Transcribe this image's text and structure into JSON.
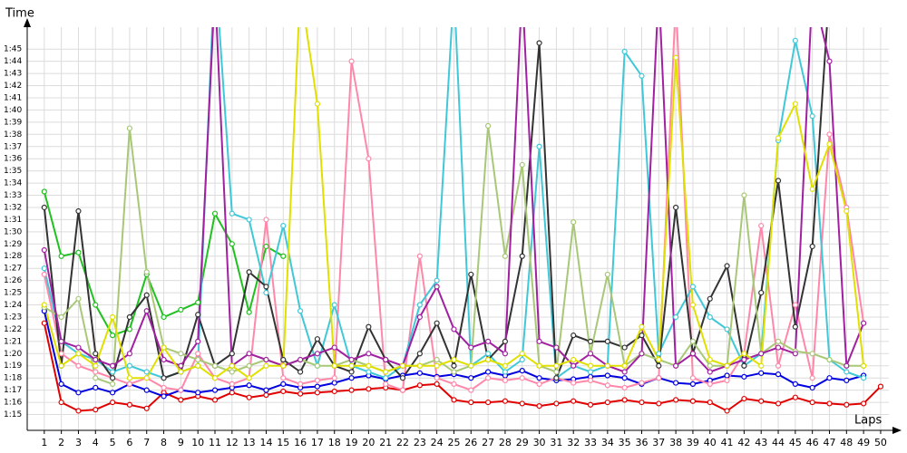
{
  "chart_data": {
    "type": "line",
    "ylabel": "Time",
    "xlabel": "Laps",
    "x": [
      1,
      2,
      3,
      4,
      5,
      6,
      7,
      8,
      9,
      10,
      11,
      12,
      13,
      14,
      15,
      16,
      17,
      18,
      19,
      20,
      21,
      22,
      23,
      24,
      25,
      26,
      27,
      28,
      29,
      30,
      31,
      32,
      33,
      34,
      35,
      36,
      37,
      38,
      39,
      40,
      41,
      42,
      43,
      44,
      45,
      46,
      47,
      48,
      49,
      50
    ],
    "xlim": [
      0,
      50.8
    ],
    "xticks": [
      1,
      2,
      3,
      4,
      5,
      6,
      7,
      8,
      9,
      10,
      11,
      12,
      13,
      14,
      15,
      16,
      17,
      18,
      19,
      20,
      21,
      22,
      23,
      24,
      25,
      26,
      27,
      28,
      29,
      30,
      31,
      32,
      33,
      34,
      35,
      36,
      37,
      38,
      39,
      40,
      41,
      42,
      43,
      44,
      45,
      46,
      47,
      48,
      49,
      50
    ],
    "ylim": [
      73.7,
      106.8
    ],
    "yticks": [
      {
        "value": 75,
        "label": "1:15"
      },
      {
        "value": 76,
        "label": "1:16"
      },
      {
        "value": 77,
        "label": "1:17"
      },
      {
        "value": 78,
        "label": "1:18"
      },
      {
        "value": 79,
        "label": "1:19"
      },
      {
        "value": 80,
        "label": "1:20"
      },
      {
        "value": 81,
        "label": "1:21"
      },
      {
        "value": 82,
        "label": "1:22"
      },
      {
        "value": 83,
        "label": "1:23"
      },
      {
        "value": 84,
        "label": "1:24"
      },
      {
        "value": 85,
        "label": "1:25"
      },
      {
        "value": 86,
        "label": "1:26"
      },
      {
        "value": 87,
        "label": "1:27"
      },
      {
        "value": 88,
        "label": "1:28"
      },
      {
        "value": 89,
        "label": "1:29"
      },
      {
        "value": 90,
        "label": "1:30"
      },
      {
        "value": 91,
        "label": "1:31"
      },
      {
        "value": 92,
        "label": "1:32"
      },
      {
        "value": 93,
        "label": "1:33"
      },
      {
        "value": 94,
        "label": "1:34"
      },
      {
        "value": 95,
        "label": "1:35"
      },
      {
        "value": 96,
        "label": "1:36"
      },
      {
        "value": 97,
        "label": "1:37"
      },
      {
        "value": 98,
        "label": "1:38"
      },
      {
        "value": 99,
        "label": "1:39"
      },
      {
        "value": 100,
        "label": "1:40"
      },
      {
        "value": 101,
        "label": "1:41"
      },
      {
        "value": 102,
        "label": "1:42"
      },
      {
        "value": 103,
        "label": "1:43"
      },
      {
        "value": 104,
        "label": "1:44"
      },
      {
        "value": 105,
        "label": "1:45"
      }
    ],
    "grid": true,
    "series": [
      {
        "color": "#e00000",
        "values": [
          82.5,
          76,
          75.3,
          75.4,
          76,
          75.8,
          75.5,
          76.8,
          76.2,
          76.5,
          76.2,
          76.8,
          76.4,
          76.6,
          76.9,
          76.7,
          76.8,
          76.9,
          77,
          77.1,
          77.2,
          77,
          77.4,
          77.5,
          76.2,
          76,
          76,
          76.1,
          75.9,
          75.7,
          75.9,
          76.1,
          75.8,
          76,
          76.2,
          76,
          75.9,
          76.2,
          76.1,
          76,
          75.3,
          76.3,
          76.1,
          75.9,
          76.4,
          76,
          75.9,
          75.8,
          75.9,
          77.3
        ]
      },
      {
        "color": "#0000e0",
        "values": [
          83.5,
          77.5,
          76.8,
          77.2,
          76.8,
          77.5,
          77,
          76.5,
          77,
          76.8,
          77,
          77.2,
          77.4,
          77,
          77.5,
          77.2,
          77.3,
          77.6,
          78,
          78.2,
          77.9,
          78.2,
          78.4,
          78.1,
          78.3,
          78,
          78.5,
          78.2,
          78.6,
          78,
          77.8,
          77.9,
          78.1,
          78.2,
          78,
          77.5,
          78,
          77.6,
          77.5,
          77.8,
          78.2,
          78.1,
          78.4,
          78.3,
          77.5,
          77.2,
          78,
          77.8,
          78.2,
          null
        ]
      },
      {
        "color": "#20c020",
        "values": [
          93.3,
          88,
          88.3,
          84,
          81.5,
          82,
          86.5,
          83,
          83.6,
          84.2,
          91.5,
          89,
          83.4,
          88.8,
          88,
          null,
          null,
          null,
          null,
          null,
          null,
          null,
          null,
          null,
          null,
          null,
          null,
          null,
          null,
          null,
          null,
          null,
          null,
          null,
          null,
          null,
          null,
          null,
          null,
          null,
          null,
          null,
          null,
          null,
          null,
          null,
          null,
          null,
          null,
          null
        ]
      },
      {
        "color": "#ff88aa",
        "values": [
          86.5,
          80,
          79,
          78.5,
          78,
          77.5,
          78,
          77.2,
          77,
          80,
          78,
          77.5,
          78,
          91,
          78,
          77.5,
          77.8,
          78,
          104,
          96,
          77.5,
          77,
          88,
          78,
          77.5,
          77,
          78,
          77.8,
          78,
          77.5,
          78,
          77.6,
          77.8,
          77.4,
          77.2,
          77.6,
          78,
          109,
          78,
          77.5,
          77.8,
          80,
          90.5,
          79,
          84,
          78,
          98,
          92,
          82.5,
          null
        ]
      },
      {
        "color": "#40c8d8",
        "values": [
          87,
          81,
          80,
          79.5,
          78.5,
          79,
          78.5,
          78,
          78.5,
          79,
          112,
          91.5,
          91,
          85,
          90.5,
          83.5,
          79,
          84,
          79,
          78.5,
          78,
          79,
          84,
          86,
          110,
          79,
          80,
          78.5,
          79.5,
          97,
          78,
          79,
          78.5,
          79,
          104.8,
          102.8,
          80,
          83,
          85.5,
          83,
          82,
          79,
          80,
          97.5,
          105.7,
          99.5,
          79.5,
          78.5,
          78,
          null
        ]
      },
      {
        "color": "#333333",
        "values": [
          92,
          79,
          91.7,
          80,
          78,
          83,
          84.8,
          78,
          78.5,
          83.2,
          79,
          80,
          86.7,
          85.5,
          79.5,
          78.5,
          81.2,
          79,
          78.5,
          82.2,
          79.5,
          78,
          80,
          82.5,
          79,
          86.5,
          79.5,
          81,
          88,
          105.5,
          78,
          81.5,
          81,
          81,
          80.5,
          81.5,
          79,
          92,
          80,
          84.5,
          87.2,
          79,
          85,
          94.2,
          82.2,
          88.8,
          110,
          null,
          null,
          null
        ]
      },
      {
        "color": "#a8c878",
        "values": [
          83.8,
          83,
          84.5,
          78,
          77.5,
          98.5,
          86.7,
          80.5,
          80,
          79.5,
          79,
          78.5,
          79,
          79.5,
          79,
          79.5,
          79,
          79,
          79.5,
          79,
          78.5,
          79,
          79,
          79.5,
          78.5,
          79,
          98.7,
          88,
          95.5,
          79,
          78.5,
          90.8,
          80,
          86.5,
          79,
          80,
          79.5,
          79,
          81,
          79,
          79,
          93,
          80,
          81,
          80.2,
          80,
          79.5,
          79,
          79,
          null
        ]
      },
      {
        "color": "#a020a0",
        "values": [
          88.5,
          81,
          80.5,
          79.5,
          79,
          80,
          83.5,
          79.5,
          79,
          81,
          110,
          79,
          80,
          79.5,
          79,
          79.5,
          80,
          80.5,
          79.5,
          80,
          79.5,
          79,
          83,
          85.5,
          82,
          80.5,
          81,
          80,
          110,
          81,
          80.5,
          79,
          80,
          79,
          78.5,
          80,
          110,
          79,
          80,
          78.5,
          79,
          79.5,
          80,
          80.5,
          80,
          110,
          104,
          79,
          82.5,
          null
        ]
      },
      {
        "color": "#e0e000",
        "values": [
          84,
          79,
          80,
          79,
          83,
          78,
          78,
          80.5,
          78.5,
          79,
          78,
          79,
          78,
          79,
          79,
          110,
          100.5,
          79,
          79,
          79,
          78.5,
          79,
          79,
          79,
          79.5,
          79,
          79.5,
          79,
          80,
          79,
          79,
          79.5,
          79,
          79,
          79,
          82.2,
          79.5,
          104.3,
          84,
          79.5,
          79,
          80,
          79,
          97.7,
          100.5,
          93.5,
          97.2,
          91.7,
          79,
          null
        ]
      }
    ]
  }
}
